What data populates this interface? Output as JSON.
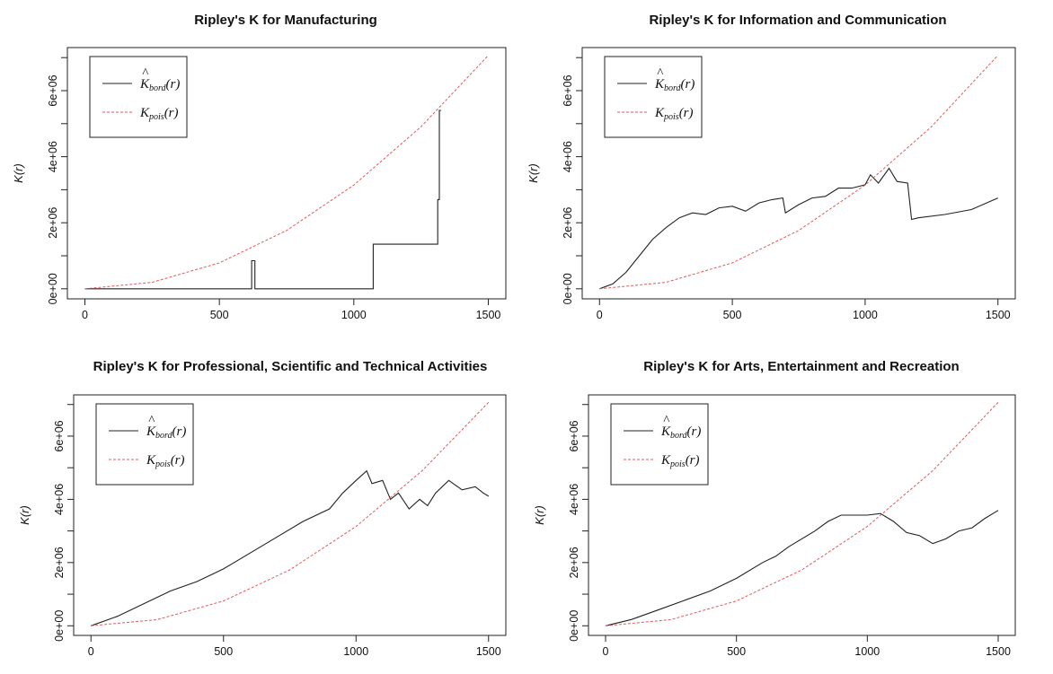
{
  "chart_data": [
    {
      "type": "line",
      "title": "Ripley's K for Manufacturing",
      "ylabel": "K(r)",
      "xlim": [
        0,
        1500
      ],
      "ylim": [
        0,
        7000000
      ],
      "x_ticks": [
        "0",
        "500",
        "1000",
        "1500"
      ],
      "y_ticks": [
        "0e+00",
        "2e+06",
        "4e+06",
        "6e+06"
      ],
      "legend_position": "top-left",
      "series": [
        {
          "name": "K̂bord(r)",
          "color": "#222222",
          "style": "solid",
          "x": [
            0,
            620,
            620,
            632,
            632,
            1072,
            1072,
            1312,
            1312,
            1318,
            1318,
            1324
          ],
          "y": [
            0,
            0,
            850000,
            850000,
            0,
            0,
            1350000,
            1350000,
            2700000,
            2700000,
            5400000,
            5400000
          ]
        },
        {
          "name": "Kpois(r)",
          "color": "#e05a5a",
          "style": "dashed",
          "x": [
            0,
            250,
            500,
            750,
            1000,
            1250,
            1500
          ],
          "y": [
            0,
            196000,
            785000,
            1767000,
            3142000,
            4909000,
            7069000
          ]
        }
      ]
    },
    {
      "type": "line",
      "title": "Ripley's K for Information and Communication",
      "ylabel": "K(r)",
      "xlim": [
        0,
        1500
      ],
      "ylim": [
        0,
        7000000
      ],
      "x_ticks": [
        "0",
        "500",
        "1000",
        "1500"
      ],
      "y_ticks": [
        "0e+00",
        "2e+06",
        "4e+06",
        "6e+06"
      ],
      "legend_position": "top-left",
      "series": [
        {
          "name": "K̂bord(r)",
          "color": "#222222",
          "style": "solid",
          "x": [
            0,
            50,
            100,
            150,
            200,
            250,
            300,
            350,
            400,
            450,
            500,
            550,
            600,
            650,
            690,
            700,
            750,
            800,
            850,
            900,
            950,
            1000,
            1020,
            1050,
            1090,
            1120,
            1160,
            1175,
            1200,
            1300,
            1400,
            1500
          ],
          "y": [
            0,
            150000,
            500000,
            1000000,
            1500000,
            1850000,
            2150000,
            2300000,
            2250000,
            2450000,
            2500000,
            2350000,
            2600000,
            2700000,
            2750000,
            2300000,
            2550000,
            2750000,
            2800000,
            3050000,
            3050000,
            3150000,
            3450000,
            3200000,
            3650000,
            3250000,
            3200000,
            2100000,
            2150000,
            2250000,
            2400000,
            2750000
          ]
        },
        {
          "name": "Kpois(r)",
          "color": "#e05a5a",
          "style": "dashed",
          "x": [
            0,
            250,
            500,
            750,
            1000,
            1250,
            1500
          ],
          "y": [
            0,
            196000,
            785000,
            1767000,
            3142000,
            4909000,
            7069000
          ]
        }
      ]
    },
    {
      "type": "line",
      "title": "Ripley's K for Professional, Scientific and Technical Activities",
      "ylabel": "K(r)",
      "xlim": [
        0,
        1500
      ],
      "ylim": [
        0,
        7000000
      ],
      "x_ticks": [
        "0",
        "500",
        "1000",
        "1500"
      ],
      "y_ticks": [
        "0e+00",
        "2e+06",
        "4e+06",
        "6e+06"
      ],
      "legend_position": "top-left",
      "series": [
        {
          "name": "K̂bord(r)",
          "color": "#222222",
          "style": "solid",
          "x": [
            0,
            100,
            200,
            300,
            400,
            500,
            600,
            700,
            800,
            900,
            950,
            1000,
            1040,
            1060,
            1100,
            1130,
            1160,
            1200,
            1240,
            1270,
            1300,
            1350,
            1400,
            1450,
            1480,
            1500
          ],
          "y": [
            0,
            300000,
            700000,
            1100000,
            1400000,
            1800000,
            2300000,
            2800000,
            3300000,
            3700000,
            4200000,
            4600000,
            4900000,
            4500000,
            4600000,
            4000000,
            4200000,
            3700000,
            4000000,
            3800000,
            4200000,
            4600000,
            4300000,
            4400000,
            4200000,
            4100000
          ]
        },
        {
          "name": "Kpois(r)",
          "color": "#e05a5a",
          "style": "dashed",
          "x": [
            0,
            250,
            500,
            750,
            1000,
            1250,
            1500
          ],
          "y": [
            0,
            196000,
            785000,
            1767000,
            3142000,
            4909000,
            7069000
          ]
        }
      ]
    },
    {
      "type": "line",
      "title": "Ripley's K for Arts, Entertainment and Recreation",
      "ylabel": "K(r)",
      "xlim": [
        0,
        1500
      ],
      "ylim": [
        0,
        7000000
      ],
      "x_ticks": [
        "0",
        "500",
        "1000",
        "1500"
      ],
      "y_ticks": [
        "0e+00",
        "2e+06",
        "4e+06",
        "6e+06"
      ],
      "legend_position": "top-left",
      "series": [
        {
          "name": "K̂bord(r)",
          "color": "#222222",
          "style": "solid",
          "x": [
            0,
            100,
            200,
            300,
            400,
            500,
            600,
            650,
            700,
            800,
            850,
            900,
            950,
            1000,
            1050,
            1100,
            1150,
            1200,
            1250,
            1300,
            1350,
            1400,
            1450,
            1500
          ],
          "y": [
            0,
            200000,
            500000,
            800000,
            1100000,
            1500000,
            2000000,
            2200000,
            2500000,
            3000000,
            3300000,
            3500000,
            3500000,
            3500000,
            3550000,
            3300000,
            2950000,
            2850000,
            2600000,
            2750000,
            3000000,
            3100000,
            3400000,
            3650000
          ]
        },
        {
          "name": "Kpois(r)",
          "color": "#e05a5a",
          "style": "dashed",
          "x": [
            0,
            250,
            500,
            750,
            1000,
            1250,
            1500
          ],
          "y": [
            0,
            196000,
            785000,
            1767000,
            3142000,
            4909000,
            7069000
          ]
        }
      ]
    }
  ]
}
